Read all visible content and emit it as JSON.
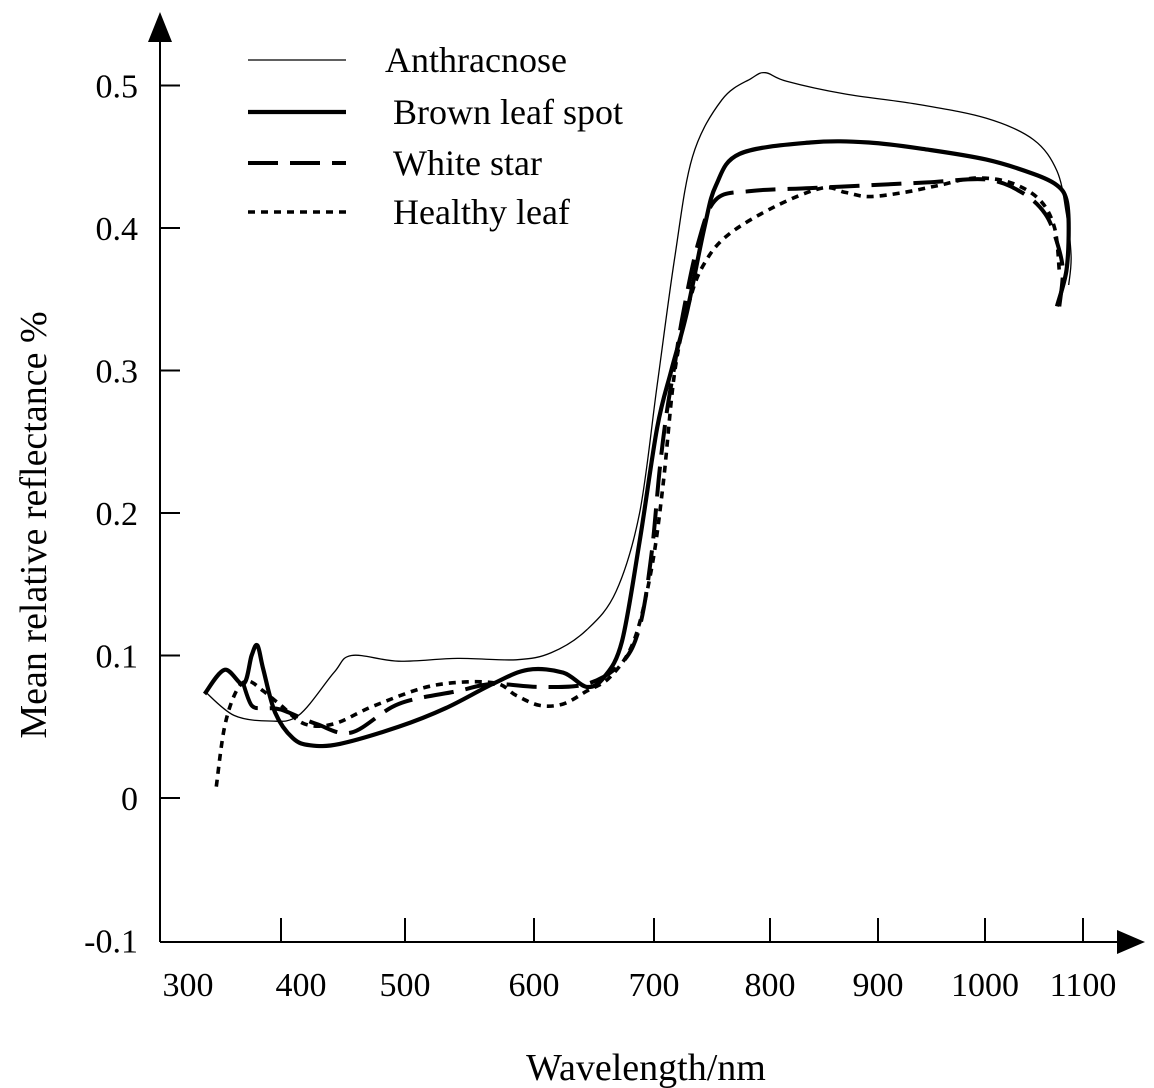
{
  "chart_data": {
    "type": "line",
    "xlabel": "Wavelength/nm",
    "ylabel": "Mean relative reflectance %",
    "xlim": [
      300,
      1100
    ],
    "ylim": [
      -0.1,
      0.5
    ],
    "x_ticks": [
      "300",
      "400",
      "500",
      "600",
      "700",
      "800",
      "900",
      "1000",
      "1100"
    ],
    "y_ticks": [
      "-0.1",
      "0",
      "0.1",
      "0.2",
      "0.3",
      "0.4",
      "0.5"
    ],
    "grid": false,
    "legend_position": "top-left",
    "series": [
      {
        "name": "Anthracnose",
        "style": "thin",
        "x": [
          335,
          360,
          390,
          415,
          445,
          460,
          500,
          550,
          600,
          630,
          660,
          685,
          705,
          720,
          735,
          750,
          775,
          800,
          812,
          830,
          880,
          940,
          1000,
          1040,
          1060,
          1068,
          1072,
          1070
        ],
        "y": [
          0.075,
          0.058,
          0.054,
          0.058,
          0.088,
          0.1,
          0.096,
          0.098,
          0.097,
          0.102,
          0.118,
          0.145,
          0.2,
          0.29,
          0.38,
          0.45,
          0.49,
          0.505,
          0.509,
          0.503,
          0.494,
          0.487,
          0.477,
          0.462,
          0.44,
          0.41,
          0.38,
          0.36
        ]
      },
      {
        "name": "Brown leaf spot",
        "style": "bold",
        "x": [
          335,
          352,
          368,
          375,
          380,
          385,
          395,
          410,
          425,
          450,
          500,
          540,
          580,
          610,
          640,
          660,
          675,
          690,
          705,
          720,
          732,
          745,
          760,
          770,
          790,
          850,
          900,
          950,
          1000,
          1040,
          1060,
          1068,
          1070,
          1068,
          1060
        ],
        "y": [
          0.073,
          0.09,
          0.08,
          0.1,
          0.107,
          0.09,
          0.06,
          0.042,
          0.037,
          0.038,
          0.05,
          0.063,
          0.08,
          0.09,
          0.088,
          0.078,
          0.085,
          0.11,
          0.18,
          0.26,
          0.3,
          0.34,
          0.4,
          0.43,
          0.452,
          0.46,
          0.46,
          0.455,
          0.448,
          0.438,
          0.43,
          0.42,
          0.4,
          0.37,
          0.345
        ]
      },
      {
        "name": "White star",
        "style": "dashed",
        "x": [
          368,
          375,
          385,
          400,
          430,
          460,
          500,
          550,
          580,
          620,
          660,
          690,
          705,
          715,
          722,
          728,
          735,
          742,
          755,
          770,
          800,
          850,
          900,
          950,
          1000,
          1030,
          1050,
          1060,
          1065,
          1062
        ],
        "y": [
          0.08,
          0.065,
          0.063,
          0.062,
          0.052,
          0.046,
          0.066,
          0.075,
          0.08,
          0.078,
          0.08,
          0.095,
          0.12,
          0.17,
          0.23,
          0.27,
          0.305,
          0.34,
          0.39,
          0.42,
          0.426,
          0.428,
          0.43,
          0.432,
          0.434,
          0.425,
          0.41,
          0.39,
          0.37,
          0.345
        ]
      },
      {
        "name": "Healthy leaf",
        "style": "dotted",
        "x": [
          345,
          352,
          362,
          372,
          385,
          400,
          420,
          445,
          480,
          530,
          580,
          600,
          620,
          640,
          660,
          680,
          700,
          715,
          725,
          735,
          748,
          760,
          780,
          820,
          860,
          880,
          900,
          930,
          960,
          990,
          1020,
          1045,
          1058,
          1062
        ],
        "y": [
          0.008,
          0.05,
          0.075,
          0.082,
          0.075,
          0.065,
          0.052,
          0.052,
          0.065,
          0.079,
          0.081,
          0.072,
          0.065,
          0.066,
          0.075,
          0.085,
          0.11,
          0.16,
          0.22,
          0.3,
          0.35,
          0.375,
          0.395,
          0.415,
          0.428,
          0.425,
          0.422,
          0.425,
          0.43,
          0.435,
          0.432,
          0.42,
          0.4,
          0.37
        ]
      }
    ]
  }
}
